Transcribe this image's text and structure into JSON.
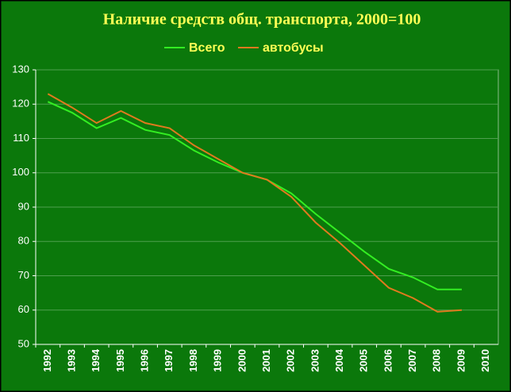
{
  "chart_data": {
    "type": "line",
    "title": "Наличие средств общ. транспорта, 2000=100",
    "categories": [
      "1992",
      "1993",
      "1994",
      "1995",
      "1996",
      "1997",
      "1998",
      "1999",
      "2000",
      "2001",
      "2002",
      "2003",
      "2004",
      "2005",
      "2006",
      "2007",
      "2008",
      "2009",
      "2010"
    ],
    "series": [
      {
        "name": "Всего",
        "color": "#33ee22",
        "values": [
          120.7,
          117.5,
          113,
          116,
          112.5,
          111,
          106.5,
          103,
          100,
          98,
          94,
          88,
          82.5,
          77,
          72,
          69.5,
          66,
          66,
          null
        ]
      },
      {
        "name": "автобусы",
        "color": "#e07a1e",
        "values": [
          123,
          119,
          114.5,
          118,
          114.5,
          113,
          108,
          104,
          100,
          98,
          93,
          85.5,
          79.5,
          73,
          66.5,
          63.5,
          59.5,
          60,
          null
        ]
      }
    ],
    "ylim": [
      50,
      130
    ],
    "yticks": [
      50,
      60,
      70,
      80,
      90,
      100,
      110,
      120,
      130
    ],
    "grid": true
  }
}
